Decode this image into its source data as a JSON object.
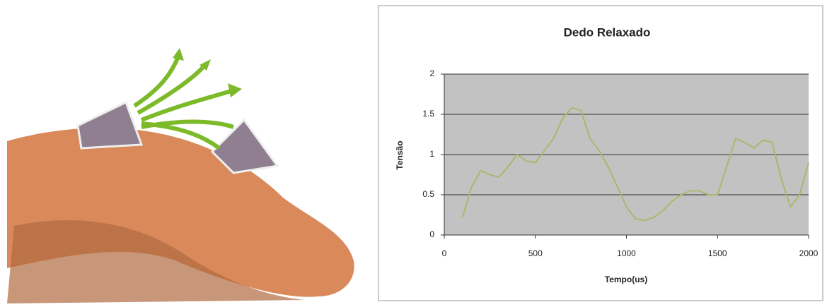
{
  "chart_data": {
    "type": "line",
    "title": "Dedo Relaxado",
    "x_label": "Tempo(us)",
    "y_label": "Tensão",
    "x": [
      100,
      150,
      200,
      250,
      300,
      350,
      400,
      450,
      500,
      550,
      600,
      650,
      700,
      750,
      800,
      850,
      900,
      950,
      1000,
      1050,
      1100,
      1150,
      1200,
      1250,
      1300,
      1350,
      1400,
      1450,
      1500,
      1550,
      1600,
      1650,
      1700,
      1750,
      1800,
      1850,
      1900,
      1950,
      2000
    ],
    "values": [
      0.22,
      0.6,
      0.8,
      0.75,
      0.72,
      0.85,
      1.0,
      0.92,
      0.9,
      1.05,
      1.2,
      1.45,
      1.58,
      1.55,
      1.2,
      1.05,
      0.85,
      0.6,
      0.35,
      0.2,
      0.18,
      0.22,
      0.3,
      0.42,
      0.5,
      0.55,
      0.55,
      0.5,
      0.5,
      0.85,
      1.2,
      1.15,
      1.08,
      1.18,
      1.15,
      0.7,
      0.35,
      0.5,
      0.9
    ],
    "color": "#a9b86c",
    "xlim": [
      0,
      2000
    ],
    "xticks": [
      0,
      500,
      1000,
      1500,
      2000
    ],
    "ylim": [
      0,
      2
    ],
    "yticks": [
      0,
      0.5,
      1,
      1.5,
      2
    ],
    "grid": true
  }
}
